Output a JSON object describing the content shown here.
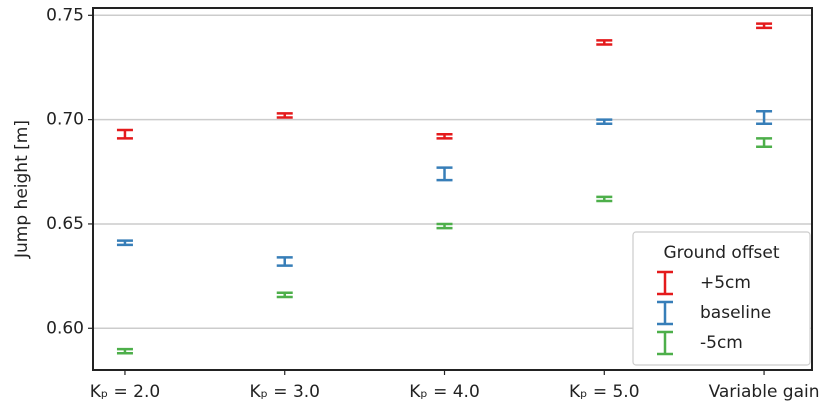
{
  "chart_data": {
    "type": "errorbar",
    "y_label": "Jump height [m]",
    "categories": [
      "Kₚ = 2.0",
      "Kₚ = 3.0",
      "Kₚ = 4.0",
      "Kₚ = 5.0",
      "Variable gain"
    ],
    "series": [
      {
        "name": "+5cm",
        "color": "#e41a1c",
        "values": [
          0.693,
          0.702,
          0.692,
          0.737,
          0.745
        ],
        "errors": [
          0.002,
          0.001,
          0.001,
          0.001,
          0.001
        ]
      },
      {
        "name": "baseline",
        "color": "#377eb8",
        "values": [
          0.641,
          0.632,
          0.674,
          0.699,
          0.701
        ],
        "errors": [
          0.001,
          0.002,
          0.003,
          0.001,
          0.003
        ]
      },
      {
        "name": "-5cm",
        "color": "#4daf4a",
        "values": [
          0.589,
          0.616,
          0.649,
          0.662,
          0.689
        ],
        "errors": [
          0.001,
          0.001,
          0.001,
          0.001,
          0.002
        ]
      }
    ],
    "ylim": [
      0.58,
      0.7535
    ],
    "yticks": [
      {
        "value": 0.6,
        "label": "0.60"
      },
      0.65,
      {
        "value": 0.7,
        "label": "0.70"
      },
      0.75
    ],
    "grid": true,
    "legend_title": "Ground offset",
    "legend": "lower right"
  }
}
